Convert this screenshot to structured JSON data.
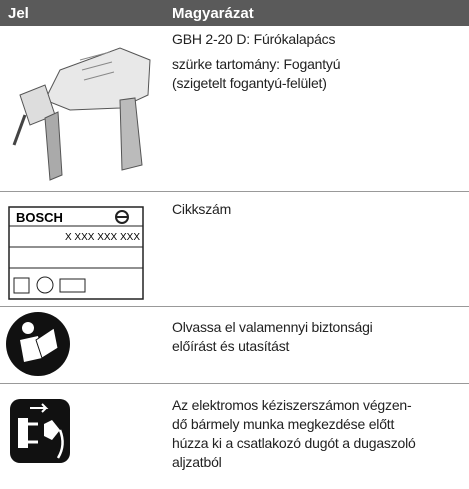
{
  "header": {
    "columns": [
      "Jel",
      "Magyarázat"
    ]
  },
  "rows": [
    {
      "explanation": [
        "GBH 2-20 D: Fúrókalapács",
        "szürke tartomány: Fogantyú",
        "(szigetelt fogantyú-felület)"
      ]
    },
    {
      "symbol": {
        "brand": "BOSCH",
        "number": "X XXX XXX XXX"
      },
      "explanation": [
        "Cikkszám"
      ]
    },
    {
      "explanation": [
        "Olvassa el valamennyi biztonsági",
        "előírást és utasítást"
      ]
    },
    {
      "explanation": [
        "Az elektromos kéziszerszámon végzen-",
        "dő bármely munka megkezdése előtt",
        "húzza ki a csatlakozó dugót a dugaszoló",
        "aljzatból"
      ]
    }
  ]
}
